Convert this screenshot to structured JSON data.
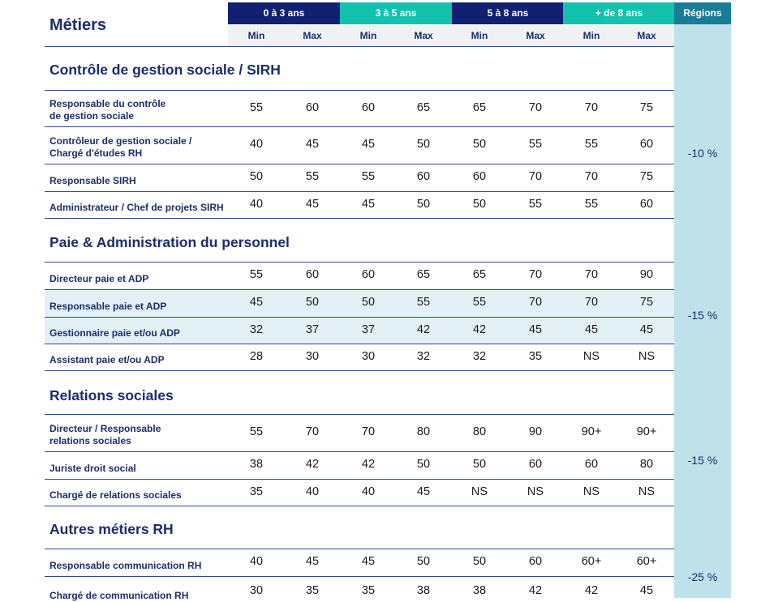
{
  "title": "Métiers",
  "headers": {
    "ranges": [
      "0 à 3 ans",
      "3 à 5 ans",
      "5 à 8 ans",
      "+ de 8 ans"
    ],
    "sub": [
      "Min",
      "Max",
      "Min",
      "Max",
      "Min",
      "Max",
      "Min",
      "Max"
    ],
    "regions": "Régions"
  },
  "colors": {
    "dark": "#0f2170",
    "teal": "#12c2ad",
    "regions": "#1a7d98",
    "highlight": "#e3f1f6"
  },
  "sections": [
    {
      "title": "Contrôle de gestion sociale / SIRH",
      "region": "-10 %",
      "rows": [
        {
          "label": "Responsable du contrôle\nde gestion sociale",
          "values": [
            "55",
            "60",
            "60",
            "65",
            "65",
            "70",
            "70",
            "75"
          ]
        },
        {
          "label": "Contrôleur de gestion sociale /\nChargé d'études RH",
          "values": [
            "40",
            "45",
            "45",
            "50",
            "50",
            "55",
            "55",
            "60"
          ]
        },
        {
          "label": "Responsable SIRH",
          "values": [
            "50",
            "55",
            "55",
            "60",
            "60",
            "70",
            "70",
            "75"
          ]
        },
        {
          "label": "Administrateur / Chef de projets SIRH",
          "values": [
            "40",
            "45",
            "45",
            "50",
            "50",
            "55",
            "55",
            "60"
          ]
        }
      ]
    },
    {
      "title": "Paie & Administration du personnel",
      "region": "-15 %",
      "rows": [
        {
          "label": "Directeur paie et ADP",
          "values": [
            "55",
            "60",
            "60",
            "65",
            "65",
            "70",
            "70",
            "90"
          ]
        },
        {
          "label": "Responsable paie et ADP",
          "values": [
            "45",
            "50",
            "50",
            "55",
            "55",
            "70",
            "70",
            "75"
          ],
          "highlight": true
        },
        {
          "label": "Gestionnaire paie et/ou ADP",
          "values": [
            "32",
            "37",
            "37",
            "42",
            "42",
            "45",
            "45",
            "45"
          ],
          "highlight": true
        },
        {
          "label": "Assistant paie et/ou ADP",
          "values": [
            "28",
            "30",
            "30",
            "32",
            "32",
            "35",
            "NS",
            "NS"
          ]
        }
      ]
    },
    {
      "title": "Relations sociales",
      "region": "-15 %",
      "rows": [
        {
          "label": "Directeur / Responsable\nrelations sociales",
          "values": [
            "55",
            "70",
            "70",
            "80",
            "80",
            "90",
            "90+",
            "90+"
          ]
        },
        {
          "label": "Juriste droit social",
          "values": [
            "38",
            "42",
            "42",
            "50",
            "50",
            "60",
            "60",
            "80"
          ]
        },
        {
          "label": "Chargé de relations sociales",
          "values": [
            "35",
            "40",
            "40",
            "45",
            "NS",
            "NS",
            "NS",
            "NS"
          ]
        }
      ]
    },
    {
      "title": "Autres métiers RH",
      "region": "-25 %",
      "rows": [
        {
          "label": "Responsable communication RH",
          "values": [
            "40",
            "45",
            "45",
            "50",
            "50",
            "60",
            "60+",
            "60+"
          ]
        },
        {
          "label": "Chargé de communication RH",
          "values": [
            "30",
            "35",
            "35",
            "38",
            "38",
            "42",
            "42",
            "45"
          ]
        }
      ]
    }
  ]
}
